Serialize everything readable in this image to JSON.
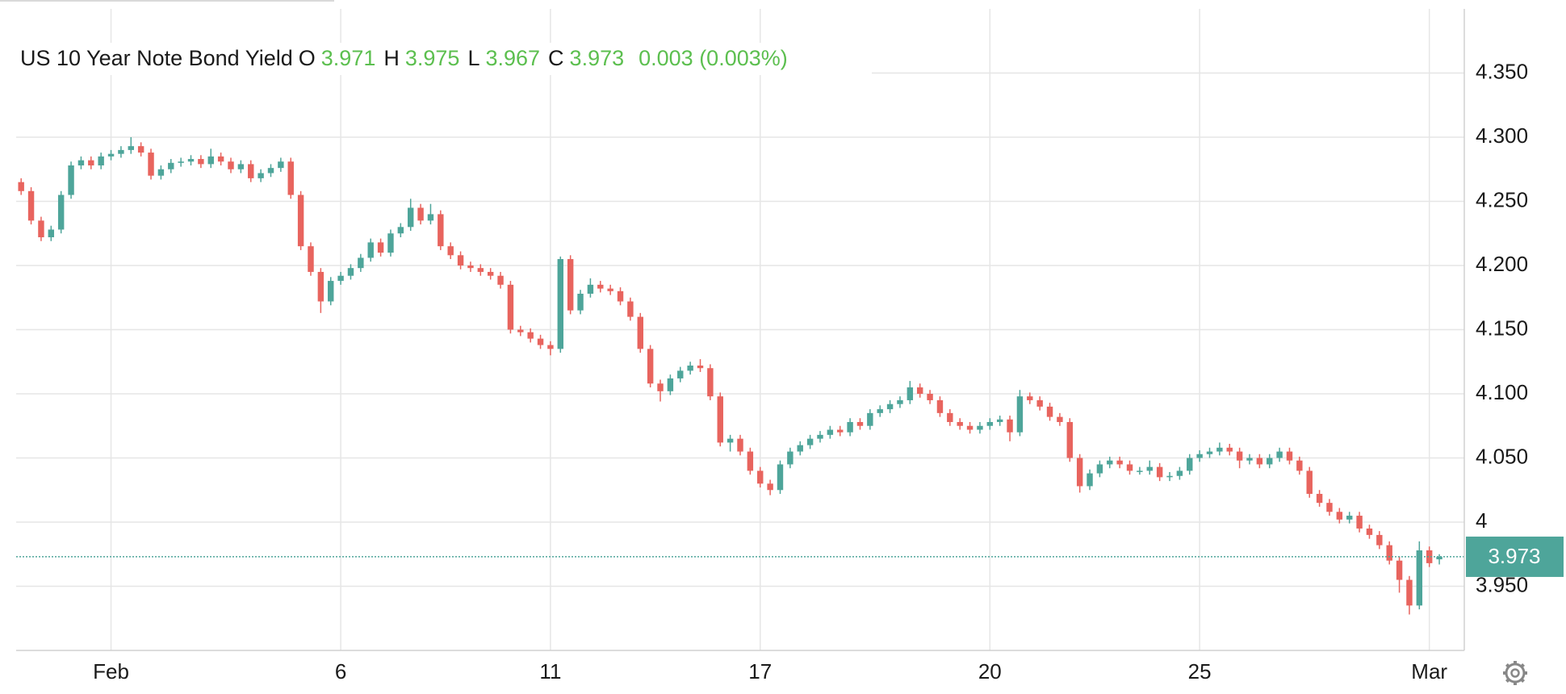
{
  "chart_data": {
    "type": "candlestick",
    "title": "US 10 Year Note Bond Yield",
    "ohlc_labels": [
      "O",
      "H",
      "L",
      "C"
    ],
    "change_text": "0.003 (0.003%)",
    "up_color": "#4ea59a",
    "down_color": "#e8645e",
    "header_value_color": "#5cbf4f",
    "grid": true,
    "ylim": [
      3.9,
      4.4
    ],
    "yticks": [
      {
        "value": 3.95,
        "label": "3.950"
      },
      4,
      {
        "value": 4.05,
        "label": "4.050"
      },
      {
        "value": 4.1,
        "label": "4.100"
      },
      {
        "value": 4.15,
        "label": "4.150"
      },
      {
        "value": 4.2,
        "label": "4.200"
      },
      {
        "value": 4.25,
        "label": "4.250"
      },
      {
        "value": 4.3,
        "label": "4.300"
      },
      {
        "value": 4.35,
        "label": "4.350"
      }
    ],
    "categories": [
      null,
      null,
      null,
      null,
      null,
      null,
      null,
      null,
      null,
      "Feb",
      null,
      null,
      null,
      null,
      null,
      null,
      null,
      null,
      null,
      null,
      null,
      null,
      null,
      null,
      null,
      null,
      null,
      null,
      null,
      null,
      null,
      null,
      "6",
      null,
      null,
      null,
      null,
      null,
      null,
      null,
      null,
      null,
      null,
      null,
      null,
      null,
      null,
      null,
      null,
      null,
      null,
      null,
      null,
      "11",
      null,
      null,
      null,
      null,
      null,
      null,
      null,
      null,
      null,
      null,
      null,
      null,
      null,
      null,
      null,
      null,
      null,
      null,
      null,
      null,
      "17",
      null,
      null,
      null,
      null,
      null,
      null,
      null,
      null,
      null,
      null,
      null,
      null,
      null,
      null,
      null,
      null,
      null,
      null,
      null,
      null,
      null,
      null,
      "20",
      null,
      null,
      null,
      null,
      null,
      null,
      null,
      null,
      null,
      null,
      null,
      null,
      null,
      null,
      null,
      null,
      null,
      null,
      null,
      null,
      "25",
      null,
      null,
      null,
      null,
      null,
      null,
      null,
      null,
      null,
      null,
      null,
      null,
      null,
      null,
      null,
      null,
      null,
      null,
      null,
      null,
      null,
      null,
      "Mar",
      null
    ],
    "open": [
      4.265,
      4.258,
      4.235,
      4.222,
      4.228,
      4.255,
      4.278,
      4.282,
      4.278,
      4.285,
      4.287,
      4.29,
      4.293,
      4.288,
      4.27,
      4.275,
      4.28,
      4.281,
      4.283,
      4.279,
      4.285,
      4.281,
      4.275,
      4.279,
      4.268,
      4.272,
      4.276,
      4.281,
      4.255,
      4.215,
      4.195,
      4.172,
      4.188,
      4.192,
      4.198,
      4.206,
      4.218,
      4.21,
      4.225,
      4.23,
      4.245,
      4.235,
      4.24,
      4.215,
      4.208,
      4.2,
      4.198,
      4.195,
      4.192,
      4.185,
      4.15,
      4.148,
      4.143,
      4.138,
      4.135,
      4.205,
      4.165,
      4.178,
      4.185,
      4.182,
      4.18,
      4.172,
      4.16,
      4.135,
      4.108,
      4.102,
      4.112,
      4.118,
      4.122,
      4.12,
      4.098,
      4.062,
      4.065,
      4.055,
      4.04,
      4.03,
      4.025,
      4.045,
      4.055,
      4.06,
      4.065,
      4.068,
      4.072,
      4.07,
      4.078,
      4.075,
      4.085,
      4.088,
      4.092,
      4.095,
      4.105,
      4.1,
      4.095,
      4.085,
      4.078,
      4.075,
      4.072,
      4.075,
      4.078,
      4.08,
      4.07,
      4.098,
      4.095,
      4.09,
      4.082,
      4.078,
      4.05,
      4.028,
      4.038,
      4.045,
      4.048,
      4.045,
      4.04,
      4.04,
      4.043,
      4.035,
      4.036,
      4.04,
      4.05,
      4.053,
      4.055,
      4.058,
      4.055,
      4.048,
      4.05,
      4.045,
      4.05,
      4.055,
      4.048,
      4.04,
      4.022,
      4.015,
      4.008,
      4.002,
      4.005,
      3.995,
      3.99,
      3.982,
      3.97,
      3.955,
      3.935,
      3.978,
      3.971
    ],
    "high": [
      4.268,
      4.261,
      4.238,
      4.231,
      4.258,
      4.281,
      4.285,
      4.285,
      4.288,
      4.29,
      4.293,
      4.3,
      4.296,
      4.291,
      4.278,
      4.283,
      4.284,
      4.286,
      4.286,
      4.291,
      4.288,
      4.284,
      4.282,
      4.282,
      4.275,
      4.279,
      4.284,
      4.284,
      4.258,
      4.218,
      4.198,
      4.191,
      4.195,
      4.201,
      4.209,
      4.221,
      4.221,
      4.228,
      4.233,
      4.252,
      4.248,
      4.248,
      4.243,
      4.218,
      4.211,
      4.203,
      4.201,
      4.198,
      4.195,
      4.188,
      4.153,
      4.151,
      4.146,
      4.141,
      4.207,
      4.208,
      4.181,
      4.19,
      4.188,
      4.185,
      4.183,
      4.175,
      4.163,
      4.138,
      4.111,
      4.115,
      4.121,
      4.125,
      4.127,
      4.123,
      4.101,
      4.068,
      4.068,
      4.058,
      4.043,
      4.033,
      4.048,
      4.058,
      4.063,
      4.068,
      4.071,
      4.075,
      4.075,
      4.081,
      4.081,
      4.088,
      4.091,
      4.095,
      4.098,
      4.11,
      4.108,
      4.103,
      4.098,
      4.088,
      4.081,
      4.078,
      4.078,
      4.081,
      4.083,
      4.083,
      4.103,
      4.101,
      4.098,
      4.093,
      4.085,
      4.081,
      4.053,
      4.041,
      4.048,
      4.051,
      4.051,
      4.048,
      4.043,
      4.048,
      4.046,
      4.039,
      4.043,
      4.053,
      4.056,
      4.058,
      4.062,
      4.061,
      4.058,
      4.053,
      4.053,
      4.053,
      4.058,
      4.058,
      4.051,
      4.043,
      4.025,
      4.018,
      4.011,
      4.008,
      4.008,
      3.998,
      3.993,
      3.985,
      3.973,
      3.958,
      3.985,
      3.981,
      3.975
    ],
    "low": [
      4.255,
      4.232,
      4.219,
      4.219,
      4.225,
      4.252,
      4.275,
      4.275,
      4.275,
      4.282,
      4.284,
      4.287,
      4.285,
      4.267,
      4.267,
      4.272,
      4.277,
      4.278,
      4.276,
      4.276,
      4.278,
      4.272,
      4.272,
      4.265,
      4.265,
      4.269,
      4.273,
      4.252,
      4.212,
      4.192,
      4.163,
      4.169,
      4.185,
      4.189,
      4.195,
      4.203,
      4.207,
      4.207,
      4.222,
      4.227,
      4.232,
      4.232,
      4.212,
      4.205,
      4.197,
      4.195,
      4.192,
      4.189,
      4.182,
      4.147,
      4.145,
      4.14,
      4.135,
      4.13,
      4.132,
      4.162,
      4.162,
      4.175,
      4.179,
      4.177,
      4.169,
      4.157,
      4.132,
      4.105,
      4.094,
      4.099,
      4.109,
      4.115,
      4.117,
      4.095,
      4.059,
      4.055,
      4.052,
      4.037,
      4.027,
      4.021,
      4.022,
      4.042,
      4.052,
      4.057,
      4.062,
      4.065,
      4.067,
      4.067,
      4.072,
      4.072,
      4.082,
      4.085,
      4.089,
      4.092,
      4.097,
      4.092,
      4.082,
      4.075,
      4.072,
      4.069,
      4.069,
      4.072,
      4.075,
      4.063,
      4.067,
      4.092,
      4.087,
      4.079,
      4.075,
      4.047,
      4.023,
      4.025,
      4.035,
      4.042,
      4.042,
      4.037,
      4.037,
      4.037,
      4.032,
      4.032,
      4.033,
      4.037,
      4.047,
      4.05,
      4.052,
      4.052,
      4.042,
      4.045,
      4.042,
      4.042,
      4.047,
      4.045,
      4.037,
      4.019,
      4.012,
      4.005,
      3.999,
      3.999,
      3.992,
      3.987,
      3.979,
      3.967,
      3.945,
      3.928,
      3.932,
      3.965,
      3.967
    ],
    "close": [
      4.258,
      4.235,
      4.222,
      4.228,
      4.255,
      4.278,
      4.282,
      4.278,
      4.285,
      4.287,
      4.29,
      4.293,
      4.288,
      4.27,
      4.275,
      4.28,
      4.281,
      4.283,
      4.279,
      4.285,
      4.281,
      4.275,
      4.279,
      4.268,
      4.272,
      4.276,
      4.281,
      4.255,
      4.215,
      4.195,
      4.172,
      4.188,
      4.192,
      4.198,
      4.206,
      4.218,
      4.21,
      4.225,
      4.23,
      4.245,
      4.235,
      4.24,
      4.215,
      4.208,
      4.2,
      4.198,
      4.195,
      4.192,
      4.185,
      4.15,
      4.148,
      4.143,
      4.138,
      4.135,
      4.205,
      4.165,
      4.178,
      4.185,
      4.182,
      4.18,
      4.172,
      4.16,
      4.135,
      4.108,
      4.102,
      4.112,
      4.118,
      4.122,
      4.12,
      4.098,
      4.062,
      4.065,
      4.055,
      4.04,
      4.03,
      4.025,
      4.045,
      4.055,
      4.06,
      4.065,
      4.068,
      4.072,
      4.07,
      4.078,
      4.075,
      4.085,
      4.088,
      4.092,
      4.095,
      4.105,
      4.1,
      4.095,
      4.085,
      4.078,
      4.075,
      4.072,
      4.075,
      4.078,
      4.08,
      4.07,
      4.098,
      4.095,
      4.09,
      4.082,
      4.078,
      4.05,
      4.028,
      4.038,
      4.045,
      4.048,
      4.045,
      4.04,
      4.04,
      4.043,
      4.035,
      4.036,
      4.04,
      4.05,
      4.053,
      4.055,
      4.058,
      4.055,
      4.048,
      4.05,
      4.045,
      4.05,
      4.055,
      4.048,
      4.04,
      4.022,
      4.015,
      4.008,
      4.002,
      4.005,
      3.995,
      3.99,
      3.982,
      3.97,
      3.955,
      3.935,
      3.978,
      3.968,
      3.973
    ]
  }
}
